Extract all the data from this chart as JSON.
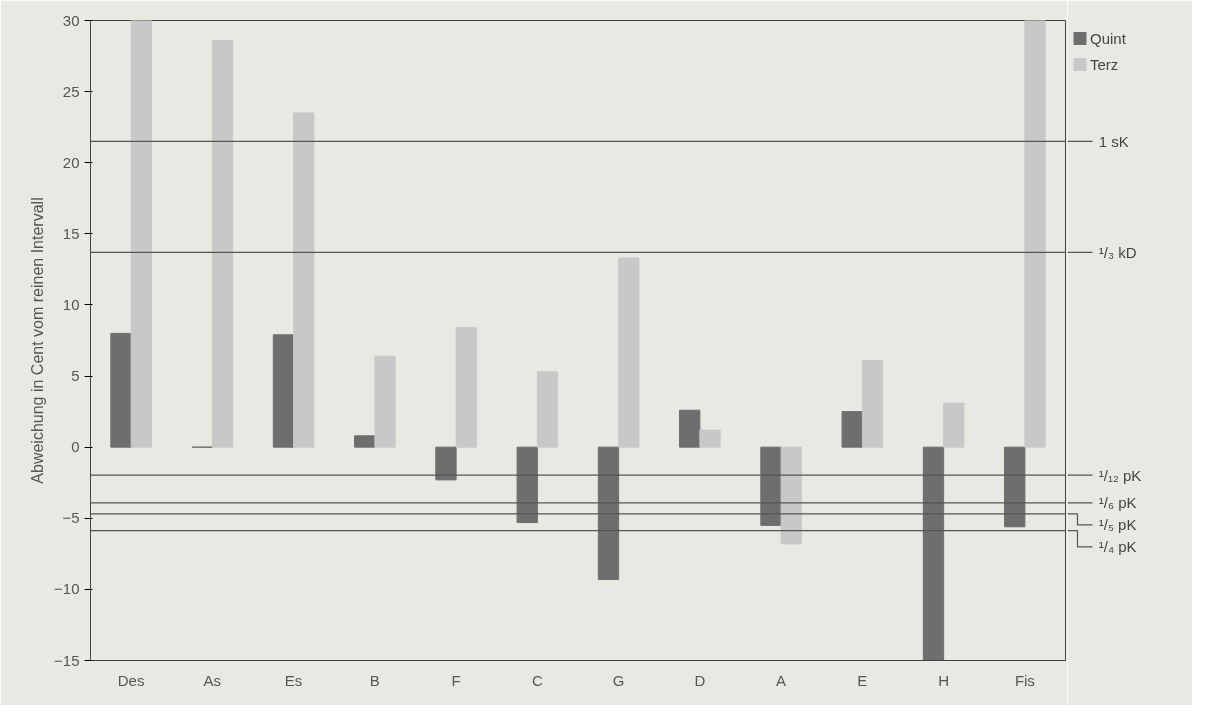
{
  "chart_data": {
    "type": "bar",
    "ylabel": "Abweichung in Cent vom reinen Intervall",
    "categories": [
      "Des",
      "As",
      "Es",
      "B",
      "F",
      "C",
      "G",
      "D",
      "A",
      "E",
      "H",
      "Fis"
    ],
    "series": [
      {
        "name": "Quint",
        "color": "#6e6e6e",
        "values": [
          8,
          0,
          7.9,
          0.8,
          -2.3,
          -5.3,
          -9.3,
          2.6,
          -5.5,
          2.5,
          -15,
          -5.6
        ]
      },
      {
        "name": "Terz",
        "color": "#c8c8c8",
        "values": [
          30,
          28.6,
          23.5,
          6.4,
          8.4,
          5.3,
          13.3,
          1.2,
          -6.8,
          6.1,
          3.1,
          30
        ]
      }
    ],
    "ylim": [
      -15,
      30
    ],
    "yticks": [
      -15,
      -10,
      -5,
      0,
      5,
      10,
      15,
      20,
      25,
      30
    ],
    "ref_lines": [
      {
        "axis": "y",
        "value": 21.5,
        "label": "1 sK",
        "color": "#555555"
      },
      {
        "axis": "y",
        "value": 13.7,
        "label": "¹/₃ kD",
        "color": "#555555"
      },
      {
        "axis": "y",
        "value": -1.96,
        "label": "¹/₁₂ pK",
        "color": "#555555"
      },
      {
        "axis": "y",
        "value": -3.91,
        "label": "¹/₆ pK",
        "color": "#555555"
      },
      {
        "axis": "y",
        "value": -4.69,
        "label": "¹/₅ pK",
        "color": "#555555"
      },
      {
        "axis": "y",
        "value": -5.87,
        "label": "¹/₄ pK",
        "color": "#555555"
      }
    ],
    "legend": "top right"
  }
}
